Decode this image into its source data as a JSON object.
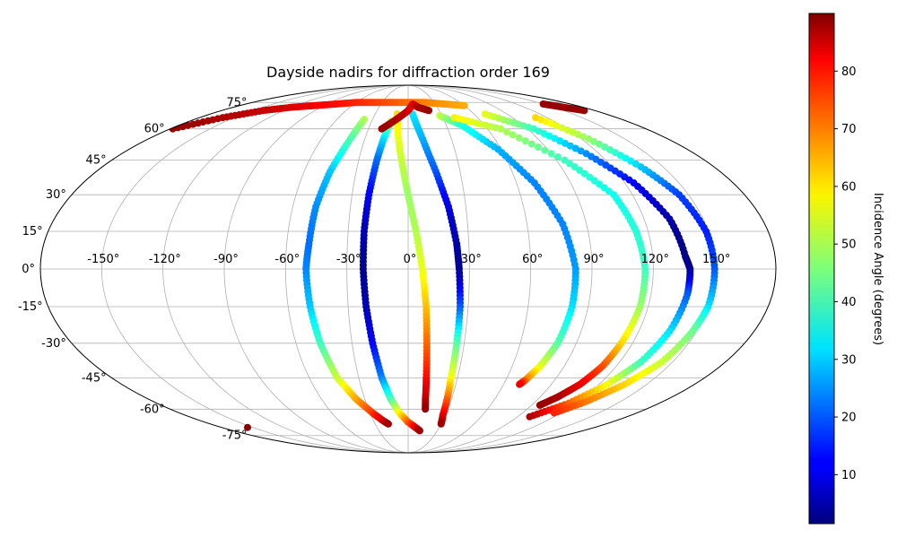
{
  "chart_data": {
    "type": "scatter",
    "projection": "mollweide",
    "title": "Dayside nadirs for diffraction order 169",
    "xlabel": "",
    "ylabel": "",
    "xlim": [
      -180,
      180
    ],
    "ylim": [
      -90,
      90
    ],
    "grid": true,
    "x_ticks": [
      -150,
      -120,
      -90,
      -60,
      -30,
      0,
      30,
      60,
      90,
      120,
      150
    ],
    "x_tick_labels": [
      "-150°",
      "-120°",
      "-90°",
      "-60°",
      "-30°",
      "0°",
      "30°",
      "60°",
      "90°",
      "120°",
      "150°"
    ],
    "y_ticks": [
      75,
      60,
      45,
      30,
      15,
      0,
      -15,
      -30,
      -45,
      -60,
      -75
    ],
    "y_tick_labels": [
      "75°",
      "60°",
      "45°",
      "30°",
      "15°",
      "0°",
      "-15°",
      "-30°",
      "-45°",
      "-60°",
      "-75°"
    ],
    "colorbar": {
      "label": "Incidence Angle (degrees)",
      "colormap": "jet",
      "range": [
        1.5,
        90
      ],
      "ticks": [
        10,
        20,
        30,
        40,
        50,
        60,
        70,
        80
      ],
      "tick_labels": [
        "10",
        "20",
        "30",
        "40",
        "50",
        "60",
        "70",
        "80"
      ]
    },
    "series": [
      {
        "x": [
          -37,
          -40,
          -45,
          -48,
          -49,
          -50,
          -49,
          -47,
          -43,
          -36,
          -28,
          -22,
          -18
        ],
        "y": [
          65,
          55,
          40,
          25,
          10,
          0,
          -15,
          -30,
          -45,
          -55,
          -62,
          -66,
          -68
        ],
        "c": [
          50,
          42,
          30,
          25,
          22,
          24,
          30,
          40,
          52,
          64,
          74,
          82,
          87
        ]
      },
      {
        "x": [
          -14,
          -17,
          -19,
          -21,
          -22,
          -22,
          -21,
          -19,
          -16,
          -12,
          -7,
          0,
          7,
          12
        ],
        "y": [
          64,
          55,
          45,
          30,
          15,
          0,
          -15,
          -30,
          -45,
          -55,
          -62,
          -67,
          -70,
          -72
        ],
        "c": [
          52,
          33,
          22,
          12,
          6,
          3,
          6,
          12,
          24,
          40,
          56,
          70,
          80,
          87
        ]
      },
      {
        "x": [
          -10,
          -8,
          -4,
          0,
          4,
          7,
          9,
          10,
          11,
          12,
          13
        ],
        "y": [
          68,
          60,
          45,
          30,
          15,
          0,
          -15,
          -30,
          -45,
          -55,
          -60
        ],
        "c": [
          60,
          57,
          52,
          48,
          50,
          55,
          62,
          70,
          78,
          84,
          88
        ]
      },
      {
        "x": [
          4,
          10,
          16,
          21,
          24,
          25,
          26,
          26,
          26,
          27,
          28,
          30
        ],
        "y": [
          68,
          55,
          40,
          25,
          10,
          0,
          -15,
          -30,
          -45,
          -55,
          -63,
          -68
        ],
        "c": [
          33,
          28,
          20,
          10,
          5,
          3,
          20,
          42,
          56,
          70,
          80,
          87
        ]
      },
      {
        "x": [
          28,
          42,
          58,
          70,
          78,
          82,
          82,
          80,
          76,
          72,
          70
        ],
        "y": [
          67,
          62,
          50,
          35,
          18,
          0,
          -15,
          -30,
          -40,
          -46,
          -48
        ],
        "c": [
          52,
          38,
          28,
          24,
          24,
          26,
          32,
          42,
          54,
          68,
          80
        ]
      },
      {
        "x": [
          40,
          70,
          95,
          110,
          114,
          116,
          116,
          114,
          112,
          108,
          102,
          96
        ],
        "y": [
          66,
          60,
          45,
          30,
          15,
          0,
          -15,
          -30,
          -40,
          -48,
          -54,
          -58
        ],
        "c": [
          58,
          50,
          40,
          36,
          38,
          40,
          48,
          60,
          72,
          80,
          86,
          88
        ]
      },
      {
        "x": [
          70,
          95,
          112,
          125,
          133,
          136,
          138,
          138,
          136,
          132,
          125,
          115,
          100
        ],
        "y": [
          68,
          60,
          48,
          35,
          20,
          5,
          0,
          -10,
          -25,
          -38,
          -48,
          -57,
          -64
        ],
        "c": [
          55,
          40,
          25,
          12,
          5,
          2,
          3,
          20,
          32,
          40,
          56,
          70,
          86
        ]
      },
      {
        "x": [
          110,
          125,
          137,
          145,
          149,
          150,
          150,
          148,
          144,
          136,
          126,
          115
        ],
        "y": [
          66,
          55,
          42,
          30,
          15,
          0,
          -15,
          -25,
          -38,
          -48,
          -56,
          -62
        ],
        "c": [
          60,
          48,
          30,
          18,
          15,
          20,
          32,
          44,
          52,
          60,
          68,
          76
        ]
      },
      {
        "x": [
          -178,
          -160,
          -140,
          -120,
          -100,
          -80,
          -60,
          -40,
          -20,
          0,
          20,
          40,
          60
        ],
        "y": [
          60,
          66,
          70,
          72,
          73,
          74,
          75,
          75,
          75,
          75,
          75,
          74,
          73
        ],
        "c": [
          88,
          86,
          84,
          82,
          80,
          78,
          76,
          74,
          72,
          70,
          68,
          66,
          64
        ]
      },
      {
        "x": [
          -20,
          -10,
          0,
          5,
          10,
          20
        ],
        "y": [
          60,
          65,
          70,
          74,
          72,
          70
        ],
        "c": [
          88,
          86,
          84,
          80,
          86,
          88
        ]
      },
      {
        "x": [
          150,
          160,
          170
        ],
        "y": [
          74,
          72,
          70
        ],
        "c": [
          88,
          88,
          88
        ]
      },
      {
        "x": [
          -155
        ],
        "y": [
          -70
        ],
        "c": [
          89
        ]
      }
    ]
  }
}
